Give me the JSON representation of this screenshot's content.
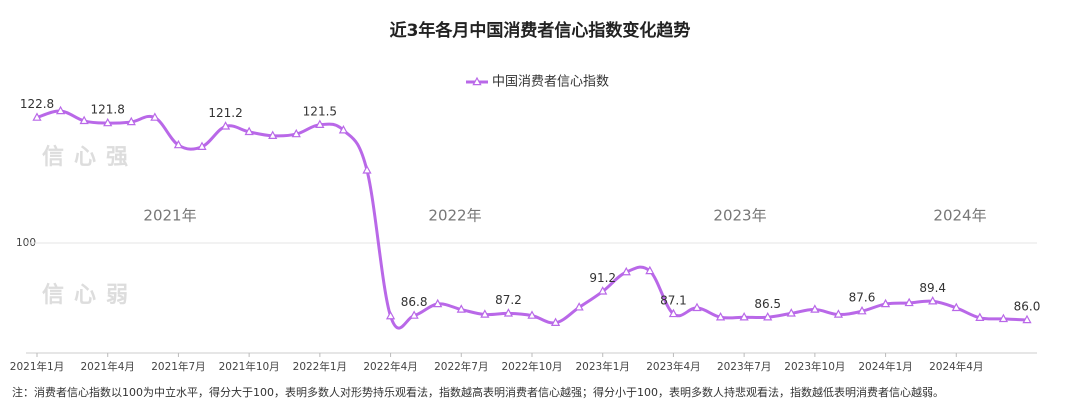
{
  "chart_data": {
    "type": "line",
    "title": "近3年各月中国消费者信心指数变化趋势",
    "categories": [
      "2021年1月",
      null,
      null,
      "2021年4月",
      null,
      null,
      "2021年7月",
      null,
      null,
      "2021年10月",
      null,
      null,
      "2022年1月",
      null,
      null,
      "2022年4月",
      null,
      null,
      "2022年7月",
      null,
      null,
      "2022年10月",
      null,
      null,
      "2023年1月",
      null,
      null,
      "2023年4月",
      null,
      null,
      "2023年7月",
      null,
      null,
      "2023年10月",
      null,
      null,
      "2024年1月",
      null,
      null,
      "2024年4月",
      null,
      null,
      null
    ],
    "series": [
      {
        "name": "中国消费者信心指数",
        "color": "#b968e8",
        "values": [
          122.8,
          124.0,
          122.2,
          121.8,
          122.0,
          122.8,
          117.8,
          117.5,
          121.2,
          120.2,
          119.5,
          119.8,
          121.5,
          120.5,
          113.2,
          86.7,
          86.8,
          88.9,
          87.9,
          87.0,
          87.2,
          86.8,
          85.5,
          88.3,
          91.2,
          94.7,
          94.9,
          87.1,
          88.2,
          86.5,
          86.5,
          86.5,
          87.2,
          87.9,
          87.0,
          87.6,
          88.9,
          89.1,
          89.4,
          88.2,
          86.4,
          86.2,
          86.0
        ],
        "value_labels": [
          "122.8",
          null,
          null,
          "121.8",
          null,
          null,
          null,
          null,
          "121.2",
          null,
          null,
          null,
          "121.5",
          null,
          null,
          null,
          "86.8",
          null,
          null,
          null,
          "87.2",
          null,
          null,
          null,
          "91.2",
          null,
          null,
          "87.1",
          null,
          null,
          null,
          "86.5",
          null,
          null,
          null,
          "87.6",
          null,
          null,
          "89.4",
          null,
          null,
          null,
          "86.0"
        ]
      }
    ],
    "ylim": [
      80,
      130
    ],
    "yticks": [
      100
    ],
    "grid": true,
    "legend": "top",
    "annotations": [
      "2021年",
      "2022年",
      "2023年",
      "2024年",
      "信心强",
      "信心弱"
    ],
    "note": "注：消费者信心指数以100为中立水平，得分大于100，表明多数人对形势持乐观看法，指数越高表明消费者信心越强；得分小于100，表明多数人持悲观看法，指数越低表明消费者信心越弱。"
  }
}
